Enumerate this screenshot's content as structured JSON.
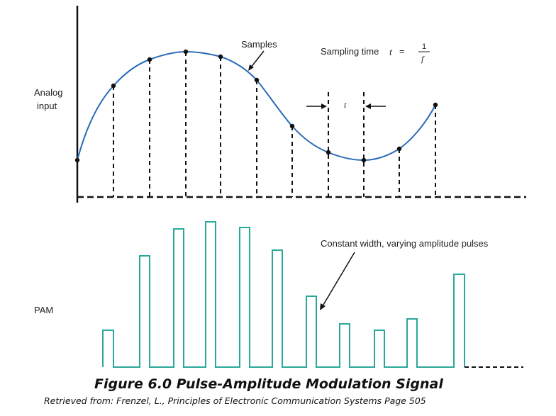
{
  "labels": {
    "samples": "Samples",
    "sampling_time_prefix": "Sampling time",
    "sampling_time_var": "t",
    "sampling_time_eq": "=",
    "frac_num": "1",
    "frac_den": "f",
    "period_t": "t",
    "analog_line1": "Analog",
    "analog_line2": "input",
    "pam": "PAM",
    "constant_width": "Constant width, varying amplitude pulses"
  },
  "caption": {
    "title": "Figure 6.0 Pulse-Amplitude Modulation Signal",
    "source": "Retrieved from: Frenzel, L., Principles of Electronic Communication Systems Page 505"
  },
  "colors": {
    "analog_curve": "#2b6cb8",
    "pam_pulses": "#2aa89a",
    "axes": "#111111"
  }
}
